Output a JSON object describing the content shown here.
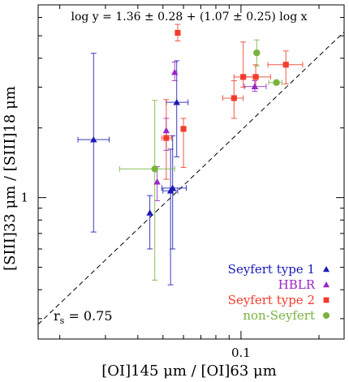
{
  "chart_data": {
    "type": "scatter",
    "title": "",
    "annotation": "log y = 1.36 ± 0.28 + (1.07 ± 0.25) log x",
    "rs_label": "r",
    "rs_subscript": "s",
    "rs_value": " = 0.75",
    "xlabel": "[OI]145 μm / [OI]63 μm",
    "ylabel": "[SIII]33 μm / [SIII]18 μm",
    "x_scale": "log",
    "y_scale": "log",
    "xlim": [
      0.0165,
      0.25
    ],
    "ylim": [
      0.245,
      6.8
    ],
    "x_tick_labels": [
      {
        "value": 0.1,
        "label": "0.1"
      }
    ],
    "y_tick_labels": [
      {
        "value": 1,
        "label": "1"
      }
    ],
    "fit_line": {
      "intercept_log": 1.36,
      "slope": 1.07,
      "style": "dashed"
    },
    "legend_position": "bottom-right",
    "series": [
      {
        "name": "Seyfert type 1",
        "color": "#1a1ab8",
        "marker": "triangle",
        "points": [
          {
            "x": 0.027,
            "y": 1.78,
            "xlo": 0.0235,
            "xhi": 0.031,
            "ylo": 0.71,
            "yhi": 4.2
          },
          {
            "x": 0.0445,
            "y": 0.86,
            "xlo": 0.0445,
            "xhi": 0.0445,
            "ylo": 0.6,
            "yhi": 1.02
          },
          {
            "x": 0.0535,
            "y": 1.07,
            "xlo": 0.05,
            "xhi": 0.057,
            "ylo": 0.42,
            "yhi": 1.62
          },
          {
            "x": 0.0545,
            "y": 1.1,
            "xlo": 0.0495,
            "xhi": 0.0615,
            "ylo": 0.6,
            "yhi": 1.85
          },
          {
            "x": 0.0565,
            "y": 2.58,
            "xlo": 0.0515,
            "xhi": 0.0625,
            "ylo": 1.5,
            "yhi": 3.9
          }
        ]
      },
      {
        "name": "HBLR",
        "color": "#9a26c8",
        "marker": "triangle",
        "points": [
          {
            "x": 0.0475,
            "y": 1.17,
            "xlo": 0.0475,
            "xhi": 0.0475,
            "ylo": 0.97,
            "yhi": 1.36
          },
          {
            "x": 0.0515,
            "y": 1.95,
            "xlo": 0.0515,
            "xhi": 0.0515,
            "ylo": 1.6,
            "yhi": 2.2
          },
          {
            "x": 0.0555,
            "y": 3.48,
            "xlo": 0.0555,
            "xhi": 0.0555,
            "ylo": 3.2,
            "yhi": 3.85
          },
          {
            "x": 0.113,
            "y": 3.02,
            "xlo": 0.103,
            "xhi": 0.125,
            "ylo": 2.88,
            "yhi": 3.2
          }
        ]
      },
      {
        "name": "Seyfert type 2",
        "color": "#f23c2c",
        "marker": "square",
        "points": [
          {
            "x": 0.0515,
            "y": 1.81,
            "xlo": 0.0495,
            "xhi": 0.054,
            "ylo": 1.2,
            "yhi": 2.65
          },
          {
            "x": 0.057,
            "y": 5.15,
            "xlo": 0.057,
            "xhi": 0.057,
            "ylo": 4.75,
            "yhi": 5.6
          },
          {
            "x": 0.06,
            "y": 1.98,
            "xlo": 0.06,
            "xhi": 0.06,
            "ylo": 1.35,
            "yhi": 2.2
          },
          {
            "x": 0.094,
            "y": 2.69,
            "xlo": 0.085,
            "xhi": 0.102,
            "ylo": 2.2,
            "yhi": 3.2
          },
          {
            "x": 0.102,
            "y": 3.32,
            "xlo": 0.094,
            "xhi": 0.113,
            "ylo": 3.0,
            "yhi": 4.7
          },
          {
            "x": 0.114,
            "y": 3.32,
            "xlo": 0.1,
            "xhi": 0.13,
            "ylo": 2.95,
            "yhi": 3.75
          },
          {
            "x": 0.149,
            "y": 3.75,
            "xlo": 0.127,
            "xhi": 0.173,
            "ylo": 3.1,
            "yhi": 4.3
          }
        ]
      },
      {
        "name": "non-Seyfert",
        "color": "#79b33f",
        "marker": "circle",
        "points": [
          {
            "x": 0.0465,
            "y": 1.33,
            "xlo": 0.034,
            "xhi": 0.0555,
            "ylo": 0.44,
            "yhi": 2.63
          },
          {
            "x": 0.115,
            "y": 4.22,
            "xlo": 0.115,
            "xhi": 0.115,
            "ylo": 3.7,
            "yhi": 4.8
          },
          {
            "x": 0.137,
            "y": 3.14,
            "xlo": 0.128,
            "xhi": 0.144,
            "ylo": 3.14,
            "yhi": 3.14
          }
        ]
      }
    ]
  }
}
